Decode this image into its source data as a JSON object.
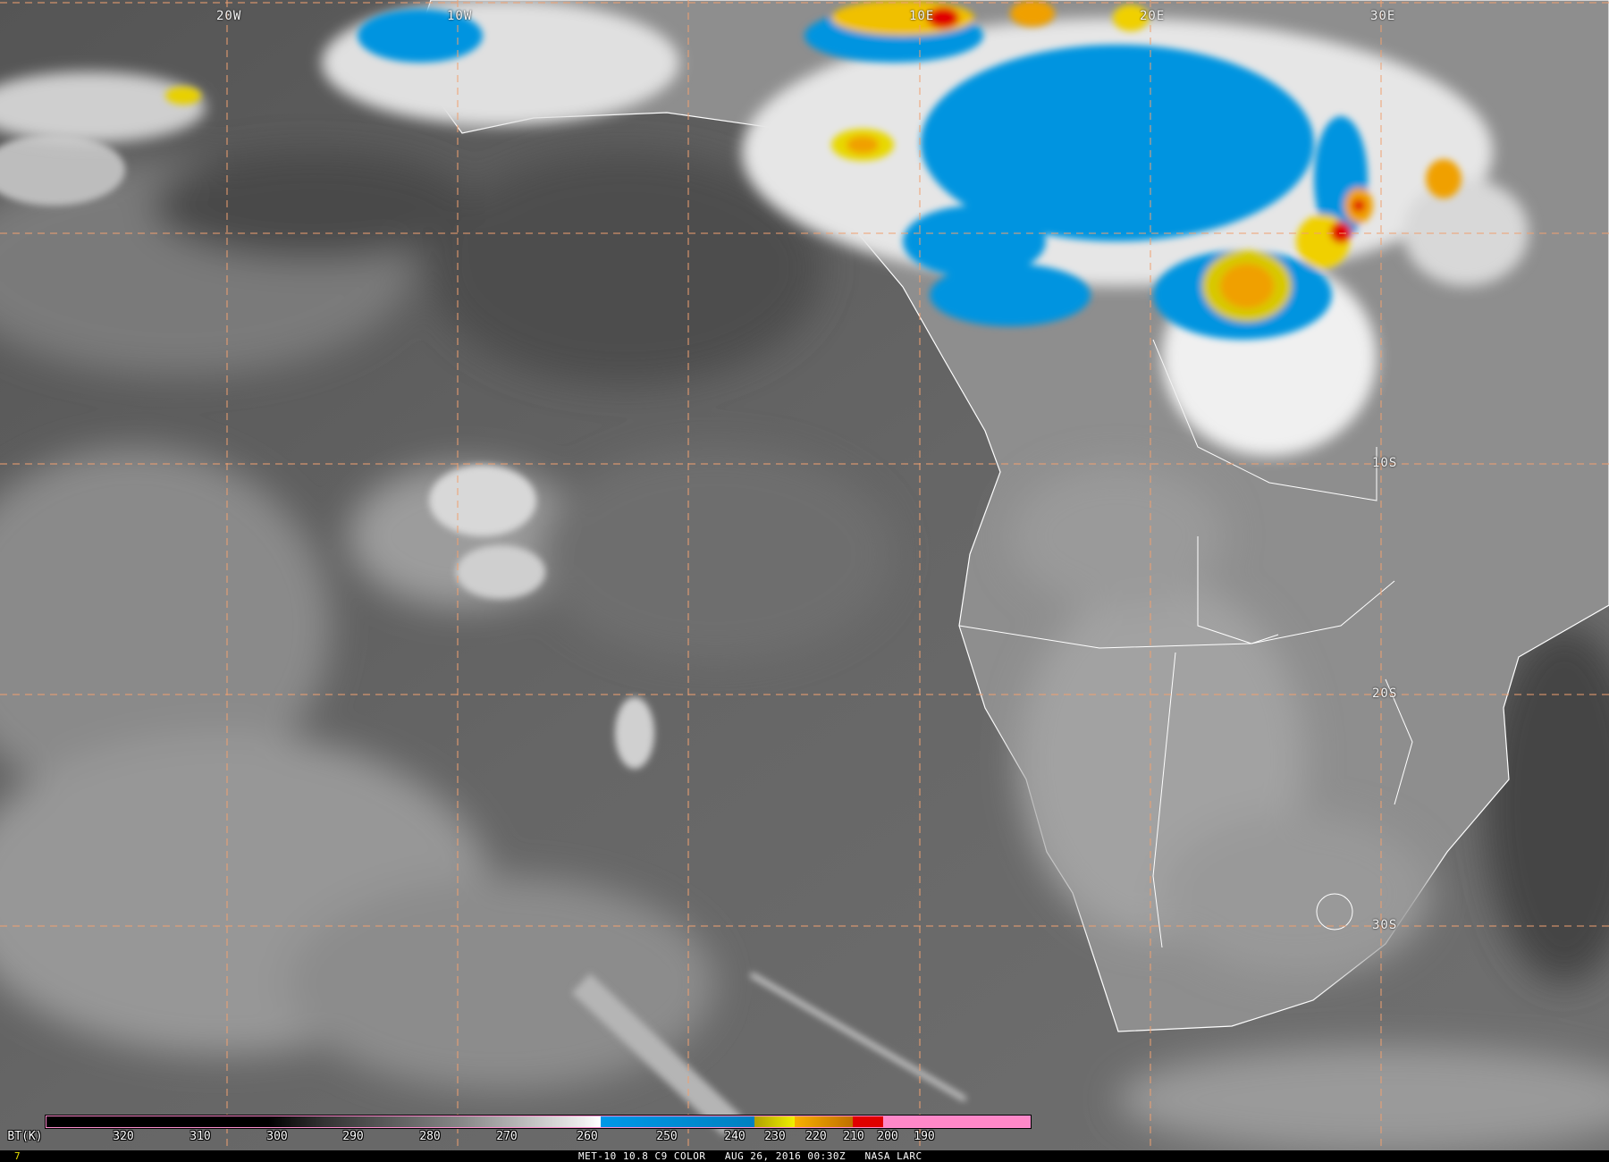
{
  "grid": {
    "lon_labels": [
      "20W",
      "10W",
      "10E",
      "20E",
      "30E"
    ],
    "lat_labels": [
      "10S",
      "20S",
      "30S"
    ],
    "grid_color": "#f0a070"
  },
  "colorbar": {
    "unit_label": "BT(K)",
    "ticks": [
      "320",
      "310",
      "300",
      "290",
      "280",
      "270",
      "260",
      "250",
      "240",
      "230",
      "220",
      "210",
      "200",
      "190"
    ],
    "colors": {
      "warm_black": "#000000",
      "cold_white": "#ffffff",
      "blue": "#0094e0",
      "olive": "#b8a800",
      "yellow": "#f0f000",
      "orange": "#f0a000",
      "red": "#e00000",
      "pink": "#ff88c8"
    }
  },
  "footer": {
    "frame": "7",
    "caption": "MET-10 10.8 C9 COLOR   AUG 26, 2016 00:30Z   NASA LARC"
  }
}
